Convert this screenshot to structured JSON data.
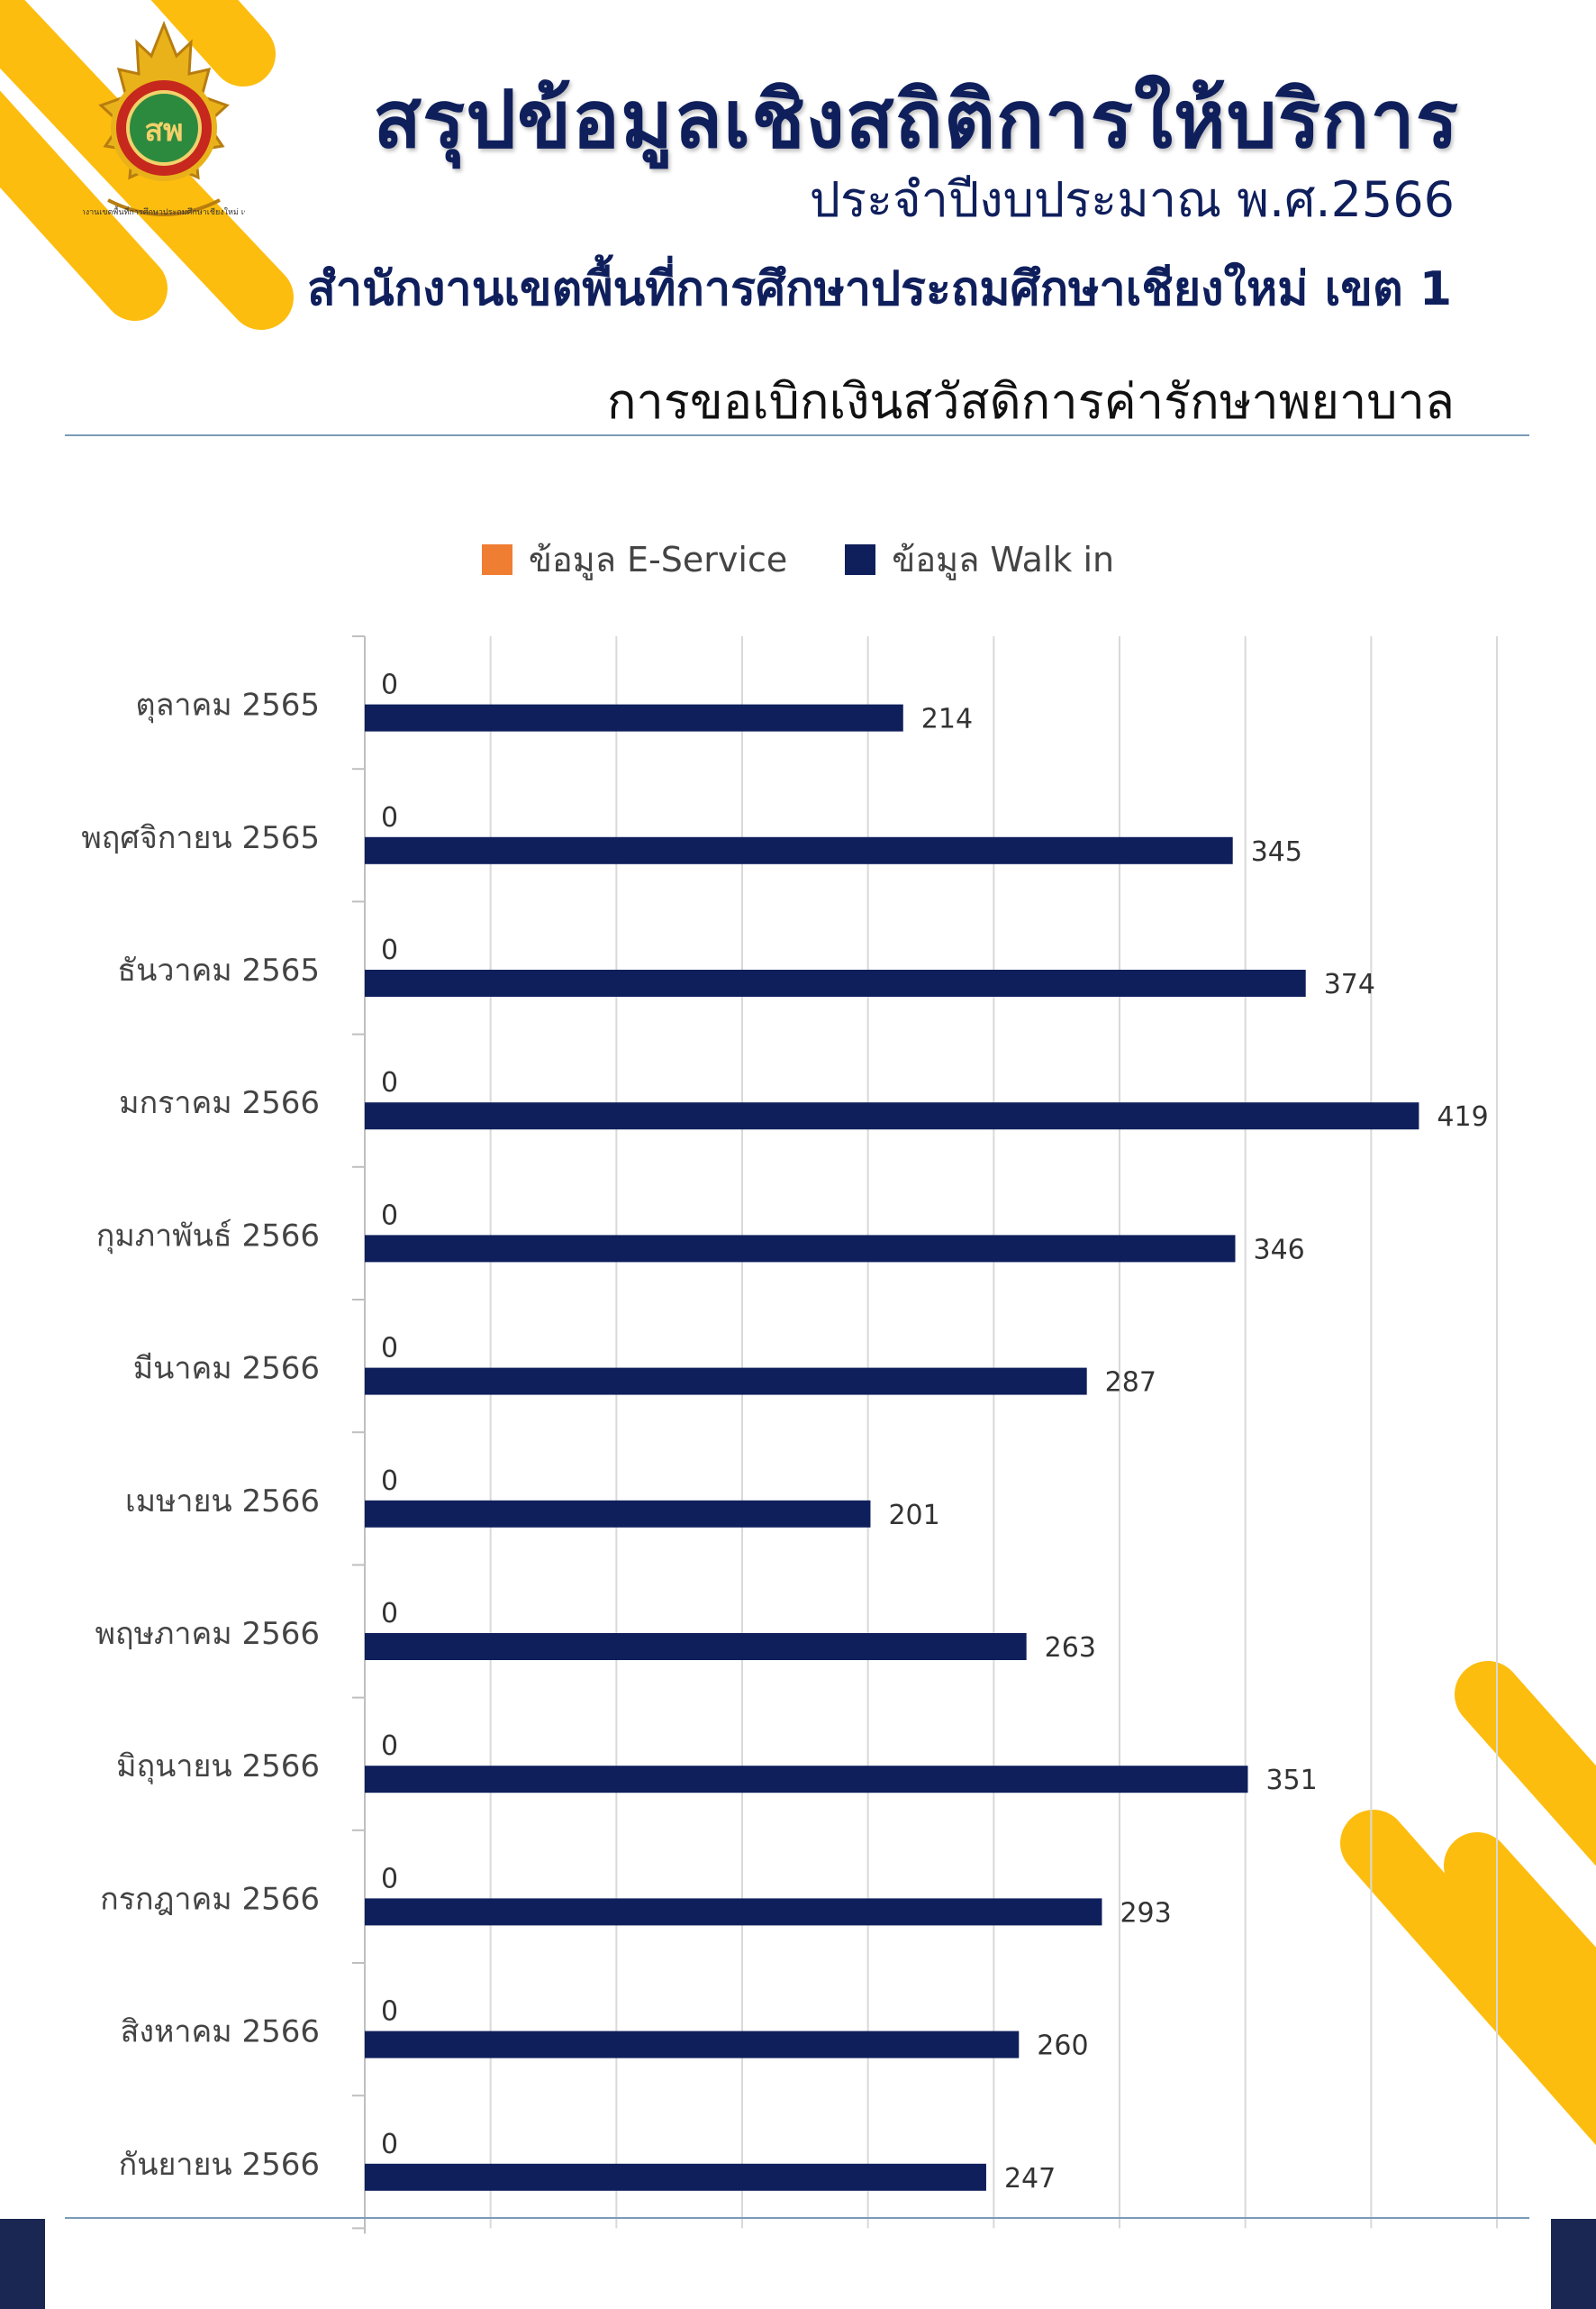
{
  "header": {
    "title": "สรุปข้อมูลเชิงสถิติการให้บริการ",
    "subtitle": "ประจำปีงบประมาณ พ.ศ.2566",
    "organization": "สำนักงานเขตพื้นที่การศึกษาประถมศึกษาเชียงใหม่ เขต 1",
    "section_title": "การขอเบิกเงินสวัสดิการค่ารักษาพยาบาล"
  },
  "logo": {
    "caption": "สำนักงานเขตพื้นที่การศึกษาประถมศึกษาเชียงใหม่ เขต 1"
  },
  "colors": {
    "brand_navy": "#0f1f5c",
    "accent_yellow": "#fdbd0f",
    "eservice": "#ef7d32",
    "walkin": "#0f1f5c"
  },
  "chart_data": {
    "type": "bar",
    "orientation": "horizontal",
    "categories": [
      "ตุลาคม 2565",
      "พฤศจิกายน 2565",
      "ธันวาคม 2565",
      "มกราคม 2566",
      "กุมภาพันธ์ 2566",
      "มีนาคม 2566",
      "เมษายน 2566",
      "พฤษภาคม 2566",
      "มิถุนายน 2566",
      "กรกฎาคม 2566",
      "สิงหาคม 2566",
      "กันยายน 2566"
    ],
    "series": [
      {
        "name": "ข้อมูล E-Service",
        "color": "#ef7d32",
        "values": [
          0,
          0,
          0,
          0,
          0,
          0,
          0,
          0,
          0,
          0,
          0,
          0
        ]
      },
      {
        "name": "ข้อมูล Walk in",
        "color": "#0f1f5c",
        "values": [
          214,
          345,
          374,
          419,
          346,
          287,
          201,
          263,
          351,
          293,
          260,
          247
        ]
      }
    ],
    "xlim": [
      0,
      450
    ],
    "grid": true,
    "legend": "top-center",
    "data_labels": true
  }
}
